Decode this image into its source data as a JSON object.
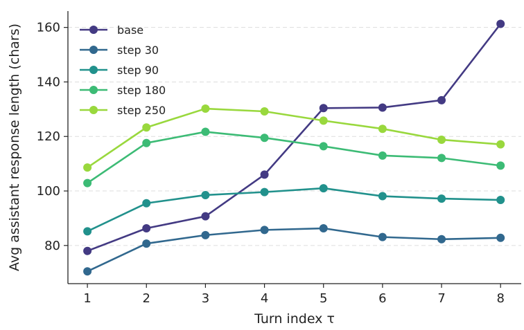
{
  "chart_data": {
    "type": "line",
    "xlabel": "Turn index τ",
    "ylabel": "Avg assistant response length (chars)",
    "x": [
      1,
      2,
      3,
      4,
      5,
      6,
      7,
      8
    ],
    "xlim": [
      0.67,
      8.35
    ],
    "ylim": [
      66,
      166
    ],
    "yticks": [
      80,
      100,
      120,
      140,
      160
    ],
    "grid": "horizontal dashed",
    "legend_position": "top-left",
    "series": [
      {
        "name": "base",
        "color": "#433a83",
        "values": [
          78.0,
          86.3,
          90.7,
          106.0,
          130.4,
          130.6,
          133.3,
          161.3
        ]
      },
      {
        "name": "step 30",
        "color": "#31688e",
        "values": [
          70.5,
          80.7,
          83.8,
          85.7,
          86.3,
          83.1,
          82.3,
          82.8
        ]
      },
      {
        "name": "step 90",
        "color": "#21918c",
        "values": [
          85.2,
          95.5,
          98.5,
          99.6,
          101.0,
          98.1,
          97.2,
          96.7
        ]
      },
      {
        "name": "step 180",
        "color": "#3cbb75",
        "values": [
          102.9,
          117.6,
          121.7,
          119.5,
          116.4,
          113.0,
          112.1,
          109.3
        ]
      },
      {
        "name": "step 250",
        "color": "#99d83d",
        "values": [
          108.6,
          123.3,
          130.2,
          129.2,
          125.8,
          122.8,
          118.8,
          117.1
        ]
      }
    ]
  }
}
